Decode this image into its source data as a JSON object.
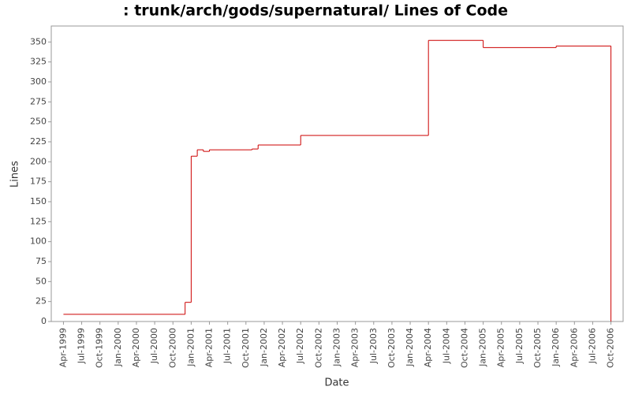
{
  "chart_data": {
    "type": "step",
    "title": ": trunk/arch/gods/supernatural/ Lines of Code",
    "x_label": "Date",
    "y_label": "Lines",
    "x": [
      "1999-04",
      "2000-12",
      "2001-01",
      "2001-02",
      "2001-03",
      "2001-04",
      "2001-11",
      "2001-12",
      "2002-07",
      "2004-04",
      "2005-01",
      "2006-01",
      "2006-10"
    ],
    "series": [
      {
        "name": "Lines",
        "color": "#cc0000",
        "values": [
          9,
          24,
          207,
          215,
          213,
          215,
          216,
          221,
          233,
          352,
          343,
          345,
          0
        ]
      }
    ],
    "xlim": [
      "1999-02",
      "2006-12"
    ],
    "xticks": [
      {
        "value": "1999-04",
        "label": "Apr-1999"
      },
      {
        "value": "1999-07",
        "label": "Jul-1999"
      },
      {
        "value": "1999-10",
        "label": "Oct-1999"
      },
      {
        "value": "2000-01",
        "label": "Jan-2000"
      },
      {
        "value": "2000-04",
        "label": "Apr-2000"
      },
      {
        "value": "2000-07",
        "label": "Jul-2000"
      },
      {
        "value": "2000-10",
        "label": "Oct-2000"
      },
      {
        "value": "2001-01",
        "label": "Jan-2001"
      },
      {
        "value": "2001-04",
        "label": "Apr-2001"
      },
      {
        "value": "2001-07",
        "label": "Jul-2001"
      },
      {
        "value": "2001-10",
        "label": "Oct-2001"
      },
      {
        "value": "2002-01",
        "label": "Jan-2002"
      },
      {
        "value": "2002-04",
        "label": "Apr-2002"
      },
      {
        "value": "2002-07",
        "label": "Jul-2002"
      },
      {
        "value": "2002-10",
        "label": "Oct-2002"
      },
      {
        "value": "2003-01",
        "label": "Jan-2003"
      },
      {
        "value": "2003-04",
        "label": "Apr-2003"
      },
      {
        "value": "2003-07",
        "label": "Jul-2003"
      },
      {
        "value": "2003-10",
        "label": "Oct-2003"
      },
      {
        "value": "2004-01",
        "label": "Jan-2004"
      },
      {
        "value": "2004-04",
        "label": "Apr-2004"
      },
      {
        "value": "2004-07",
        "label": "Jul-2004"
      },
      {
        "value": "2004-10",
        "label": "Oct-2004"
      },
      {
        "value": "2005-01",
        "label": "Jan-2005"
      },
      {
        "value": "2005-04",
        "label": "Apr-2005"
      },
      {
        "value": "2005-07",
        "label": "Jul-2005"
      },
      {
        "value": "2005-10",
        "label": "Oct-2005"
      },
      {
        "value": "2006-01",
        "label": "Jan-2006"
      },
      {
        "value": "2006-04",
        "label": "Apr-2006"
      },
      {
        "value": "2006-07",
        "label": "Jul-2006"
      },
      {
        "value": "2006-10",
        "label": "Oct-2006"
      }
    ],
    "ylim": [
      0,
      370
    ],
    "yticks": [
      0,
      25,
      50,
      75,
      100,
      125,
      150,
      175,
      200,
      225,
      250,
      275,
      300,
      325,
      350
    ],
    "grid": false
  }
}
